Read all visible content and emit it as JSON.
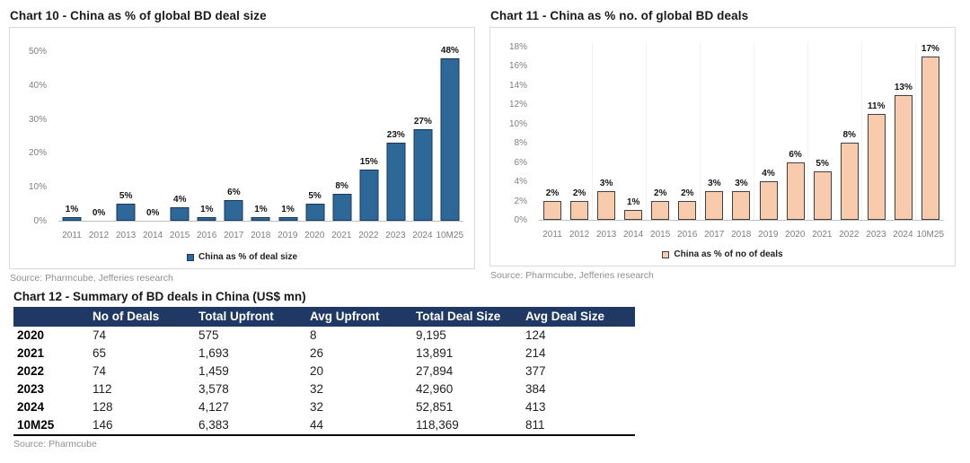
{
  "chart_data": [
    {
      "type": "bar",
      "title": "Chart 10 - China as % of global BD deal size",
      "categories": [
        "2011",
        "2012",
        "2013",
        "2014",
        "2015",
        "2016",
        "2017",
        "2018",
        "2019",
        "2020",
        "2021",
        "2022",
        "2023",
        "2024",
        "10M25"
      ],
      "values": [
        1,
        0,
        5,
        0,
        4,
        1,
        6,
        1,
        1,
        5,
        8,
        15,
        23,
        27,
        48
      ],
      "bar_labels": [
        "1%",
        "0%",
        "5%",
        "0%",
        "4%",
        "1%",
        "6%",
        "1%",
        "1%",
        "5%",
        "8%",
        "15%",
        "23%",
        "27%",
        "48%"
      ],
      "ylim": [
        0,
        50
      ],
      "yticks": [
        0,
        10,
        20,
        30,
        40,
        50
      ],
      "ytick_labels": [
        "0%",
        "10%",
        "20%",
        "30%",
        "40%",
        "50%"
      ],
      "xlabel": "",
      "ylabel": "",
      "legend": "China as % of deal size",
      "legend_position": "bottom",
      "grid": false,
      "source": "Source: Pharmcube, Jefferies research",
      "colors": {
        "bar_fill": "#2D6898",
        "bar_border": "#17375E"
      }
    },
    {
      "type": "bar",
      "title": "Chart 11 - China as % no. of global BD deals",
      "categories": [
        "2011",
        "2012",
        "2013",
        "2014",
        "2015",
        "2016",
        "2017",
        "2018",
        "2019",
        "2020",
        "2021",
        "2022",
        "2023",
        "2024",
        "10M25"
      ],
      "values": [
        2,
        2,
        3,
        1,
        2,
        2,
        3,
        3,
        4,
        6,
        5,
        8,
        11,
        13,
        17
      ],
      "bar_labels": [
        "2%",
        "2%",
        "3%",
        "1%",
        "2%",
        "2%",
        "3%",
        "3%",
        "4%",
        "6%",
        "5%",
        "8%",
        "11%",
        "13%",
        "17%"
      ],
      "ylim": [
        0,
        18
      ],
      "yticks": [
        0,
        2,
        4,
        6,
        8,
        10,
        12,
        14,
        16,
        18
      ],
      "ytick_labels": [
        "0%",
        "2%",
        "4%",
        "6%",
        "8%",
        "10%",
        "12%",
        "14%",
        "16%",
        "18%"
      ],
      "xlabel": "",
      "ylabel": "",
      "legend": "China as % of no of deals",
      "legend_position": "bottom",
      "grid": "faint-vertical",
      "source": "Source: Pharmcube, Jefferies research",
      "colors": {
        "bar_fill": "#F8CBAD",
        "bar_border": "#404040"
      }
    },
    {
      "type": "table",
      "title": "Chart 12 - Summary of BD deals in China (US$ mn)",
      "columns": [
        "",
        "No of Deals",
        "Total Upfront",
        "Avg Upfront",
        "Total Deal Size",
        "Avg Deal Size"
      ],
      "rows": [
        [
          "2020",
          "74",
          "575",
          "8",
          "9,195",
          "124"
        ],
        [
          "2021",
          "65",
          "1,693",
          "26",
          "13,891",
          "214"
        ],
        [
          "2022",
          "74",
          "1,459",
          "20",
          "27,894",
          "377"
        ],
        [
          "2023",
          "112",
          "3,578",
          "32",
          "42,960",
          "384"
        ],
        [
          "2024",
          "128",
          "4,127",
          "32",
          "52,851",
          "413"
        ],
        [
          "10M25",
          "146",
          "6,383",
          "44",
          "118,369",
          "811"
        ]
      ],
      "source": "Source: Pharmcube",
      "colors": {
        "header_bg": "#203864",
        "header_text": "#ffffff"
      }
    }
  ]
}
